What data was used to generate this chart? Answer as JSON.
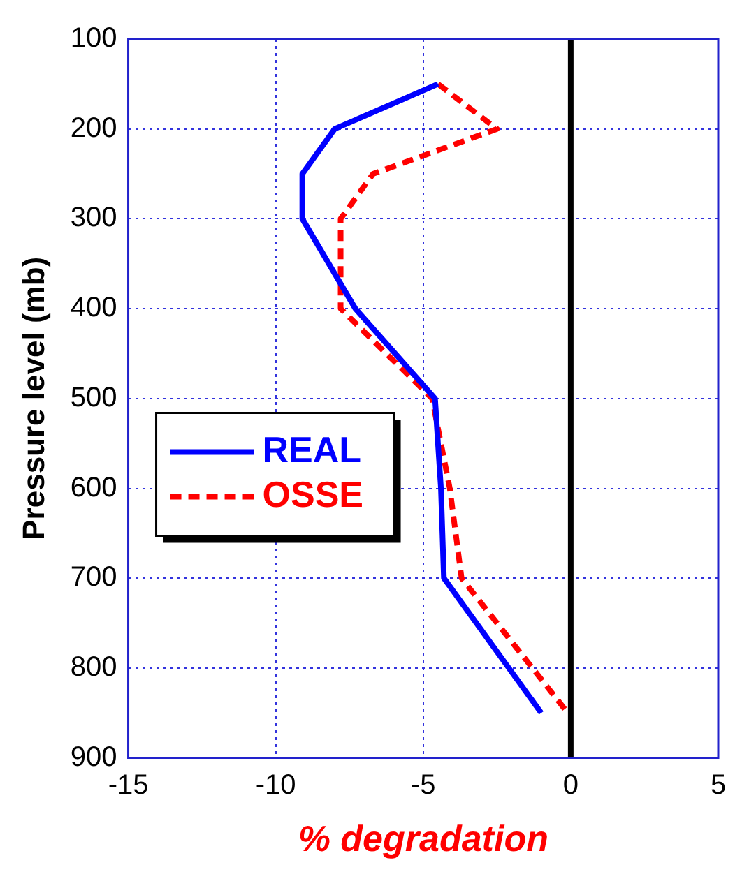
{
  "chart_data": {
    "type": "line",
    "xlabel": "% degradation",
    "ylabel": "Pressure level (mb)",
    "series": [
      {
        "name": "REAL",
        "color": "#0000ff",
        "line_style": "solid",
        "x": [
          -4.5,
          -8.0,
          -9.1,
          -9.1,
          -7.3,
          -4.6,
          -4.4,
          -4.3,
          -1.0
        ],
        "values": [
          150,
          200,
          250,
          300,
          400,
          500,
          600,
          700,
          850
        ]
      },
      {
        "name": "OSSE",
        "color": "#ff0000",
        "line_style": "dashed",
        "x": [
          -4.5,
          -2.5,
          -6.7,
          -7.8,
          -7.8,
          -4.7,
          -4.1,
          -3.7,
          -0.1
        ],
        "values": [
          150,
          200,
          250,
          300,
          400,
          500,
          600,
          700,
          850
        ]
      }
    ],
    "xlim": [
      -15,
      5
    ],
    "xticks": [
      -15,
      -10,
      -5,
      0,
      5
    ],
    "ylim": [
      900,
      100
    ],
    "yticks": [
      100,
      200,
      300,
      400,
      500,
      600,
      700,
      800,
      900
    ],
    "ref_lines": [
      {
        "axis": "x",
        "value": 0,
        "color": "#000000"
      }
    ],
    "grid": true,
    "legend": "left",
    "marker": "none"
  }
}
